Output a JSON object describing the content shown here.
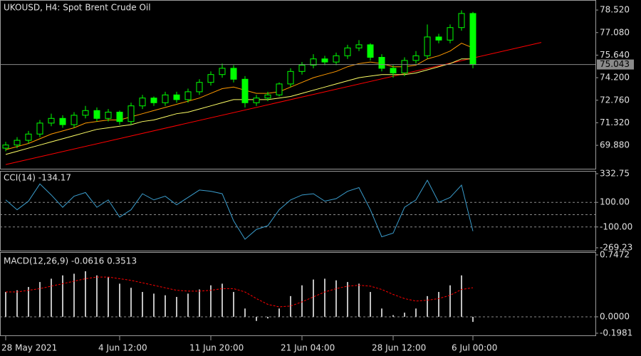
{
  "chart_data": [
    {
      "type": "candlestick",
      "title": "UKOUSD, H4:  Spot Brent Crude Oil",
      "categories": [
        "28 May 2021",
        null,
        null,
        null,
        null,
        null,
        null,
        null,
        null,
        null,
        "4 Jun 12:00",
        null,
        null,
        null,
        null,
        null,
        null,
        null,
        "11 Jun 20:00",
        null,
        null,
        null,
        null,
        null,
        null,
        null,
        "21 Jun 04:00",
        null,
        null,
        null,
        null,
        null,
        null,
        null,
        "28 Jun 12:00",
        null,
        null,
        null,
        null,
        null,
        null,
        "6 Jul 00:00"
      ],
      "open": [
        69.7,
        69.9,
        70.2,
        70.6,
        71.3,
        71.6,
        71.2,
        71.8,
        72.1,
        71.6,
        72.0,
        71.4,
        72.4,
        72.9,
        72.6,
        73.1,
        72.8,
        73.3,
        73.9,
        74.4,
        74.8,
        74.1,
        72.6,
        72.9,
        73.1,
        73.8,
        74.6,
        75.0,
        75.4,
        75.2,
        75.6,
        76.1,
        76.3,
        75.5,
        74.8,
        74.5,
        75.3,
        75.6,
        76.8,
        76.6,
        77.4,
        78.3
      ],
      "high": [
        70.1,
        70.4,
        70.8,
        71.5,
        71.9,
        71.8,
        72.0,
        72.4,
        72.3,
        72.2,
        72.1,
        72.6,
        73.1,
        73.0,
        73.3,
        73.3,
        73.5,
        74.1,
        74.6,
        75.1,
        75.0,
        74.3,
        73.1,
        73.3,
        73.9,
        74.8,
        75.2,
        75.7,
        75.6,
        75.8,
        76.3,
        76.6,
        76.4,
        75.7,
        75.0,
        75.5,
        75.9,
        77.6,
        77.0,
        77.6,
        78.5,
        78.4
      ],
      "low": [
        69.5,
        69.7,
        70.0,
        70.4,
        71.1,
        71.0,
        71.0,
        71.6,
        71.4,
        71.4,
        71.2,
        71.2,
        72.2,
        72.4,
        72.4,
        72.6,
        72.6,
        73.1,
        73.7,
        74.2,
        73.9,
        72.3,
        72.4,
        72.7,
        73.0,
        73.6,
        74.4,
        74.8,
        75.0,
        75.0,
        75.4,
        75.9,
        75.3,
        74.6,
        74.2,
        74.3,
        75.1,
        75.4,
        76.4,
        76.4,
        77.2,
        74.8
      ],
      "close": [
        69.9,
        70.2,
        70.6,
        71.3,
        71.6,
        71.2,
        71.8,
        72.1,
        71.6,
        72.0,
        71.4,
        72.4,
        72.9,
        72.6,
        73.1,
        72.8,
        73.3,
        73.9,
        74.4,
        74.8,
        74.1,
        72.6,
        72.9,
        73.1,
        73.8,
        74.6,
        75.0,
        75.4,
        75.2,
        75.6,
        76.1,
        76.3,
        75.5,
        74.8,
        74.5,
        75.3,
        75.6,
        76.8,
        76.6,
        77.4,
        78.3,
        75.04
      ],
      "color": "#00ff00",
      "series": [
        {
          "color": "#ff9900",
          "values": [
            69.6,
            69.8,
            70.0,
            70.3,
            70.6,
            70.8,
            71.0,
            71.3,
            71.4,
            71.5,
            71.5,
            71.7,
            71.9,
            72.1,
            72.3,
            72.5,
            72.7,
            72.9,
            73.2,
            73.5,
            73.6,
            73.4,
            73.2,
            73.2,
            73.3,
            73.6,
            73.9,
            74.2,
            74.4,
            74.6,
            74.9,
            75.1,
            75.2,
            75.1,
            74.9,
            74.9,
            75.0,
            75.4,
            75.6,
            75.9,
            76.4,
            76.1
          ]
        },
        {
          "color": "#ffff66",
          "values": [
            69.3,
            69.5,
            69.7,
            69.9,
            70.1,
            70.3,
            70.5,
            70.7,
            70.9,
            71.0,
            71.1,
            71.2,
            71.4,
            71.5,
            71.7,
            71.9,
            72.0,
            72.2,
            72.4,
            72.6,
            72.8,
            72.8,
            72.8,
            72.8,
            72.9,
            73.0,
            73.2,
            73.4,
            73.6,
            73.8,
            74.0,
            74.2,
            74.3,
            74.4,
            74.4,
            74.4,
            74.5,
            74.7,
            74.9,
            75.1,
            75.4,
            75.4
          ]
        }
      ],
      "trendline": {
        "color": "#ff0000",
        "x": [
          0,
          47
        ],
        "y": [
          68.65,
          76.45
        ]
      },
      "current_price": {
        "value": 75.043,
        "label": "75.043"
      },
      "ylim": [
        68.43,
        79.07
      ],
      "yticks": [
        {
          "value": 69.88,
          "label": "69.880"
        },
        {
          "value": 71.32,
          "label": "71.320"
        },
        {
          "value": 72.76,
          "label": "72.760"
        },
        {
          "value": 74.2,
          "label": "74.200"
        },
        {
          "value": 75.64,
          "label": "75.640"
        },
        {
          "value": 77.08,
          "label": "77.080"
        },
        {
          "value": 78.52,
          "label": "78.520"
        }
      ]
    },
    {
      "type": "line",
      "title": "CCI(14) -134.17",
      "color": "#3a9ccc",
      "values": [
        120,
        40,
        110,
        250,
        160,
        60,
        150,
        180,
        60,
        120,
        -20,
        40,
        170,
        120,
        150,
        80,
        140,
        200,
        190,
        170,
        -50,
        -200,
        -120,
        -90,
        40,
        120,
        160,
        170,
        110,
        130,
        190,
        220,
        40,
        -180,
        -150,
        60,
        120,
        280,
        100,
        140,
        240,
        -134.17
      ],
      "levels": [
        100,
        0,
        -100
      ],
      "ylim": [
        -269.23,
        332.75
      ],
      "yticks": [
        {
          "value": 332.75,
          "label": "332.75"
        },
        {
          "value": 100,
          "label": "100.00"
        },
        {
          "value": -100,
          "label": "-100.00"
        },
        {
          "value": -269.23,
          "label": "-269.23"
        }
      ]
    },
    {
      "type": "macd",
      "title": "MACD(12,26,9) -0.0616 0.3513",
      "color": "#c0c0c0",
      "signal_color": "#ff0000",
      "values": [
        0.3,
        0.32,
        0.36,
        0.42,
        0.46,
        0.5,
        0.52,
        0.55,
        0.5,
        0.48,
        0.4,
        0.35,
        0.3,
        0.28,
        0.26,
        0.24,
        0.28,
        0.33,
        0.38,
        0.4,
        0.3,
        0.1,
        -0.05,
        -0.02,
        0.1,
        0.25,
        0.38,
        0.45,
        0.46,
        0.44,
        0.42,
        0.4,
        0.3,
        0.1,
        0.02,
        0.05,
        0.1,
        0.25,
        0.3,
        0.38,
        0.5,
        -0.0616
      ],
      "signal": [
        0.3,
        0.3,
        0.32,
        0.34,
        0.37,
        0.4,
        0.43,
        0.46,
        0.48,
        0.48,
        0.46,
        0.44,
        0.41,
        0.38,
        0.35,
        0.32,
        0.31,
        0.31,
        0.32,
        0.34,
        0.34,
        0.3,
        0.22,
        0.15,
        0.12,
        0.13,
        0.18,
        0.24,
        0.3,
        0.34,
        0.37,
        0.38,
        0.37,
        0.33,
        0.27,
        0.22,
        0.19,
        0.2,
        0.22,
        0.26,
        0.33,
        0.3513
      ],
      "levels": [
        0
      ],
      "ylim": [
        -0.1981,
        0.7472
      ],
      "yticks": [
        {
          "value": 0.7472,
          "label": "0.7472"
        },
        {
          "value": 0,
          "label": "0.0000"
        },
        {
          "value": -0.1981,
          "label": "-0.1981"
        }
      ]
    }
  ]
}
